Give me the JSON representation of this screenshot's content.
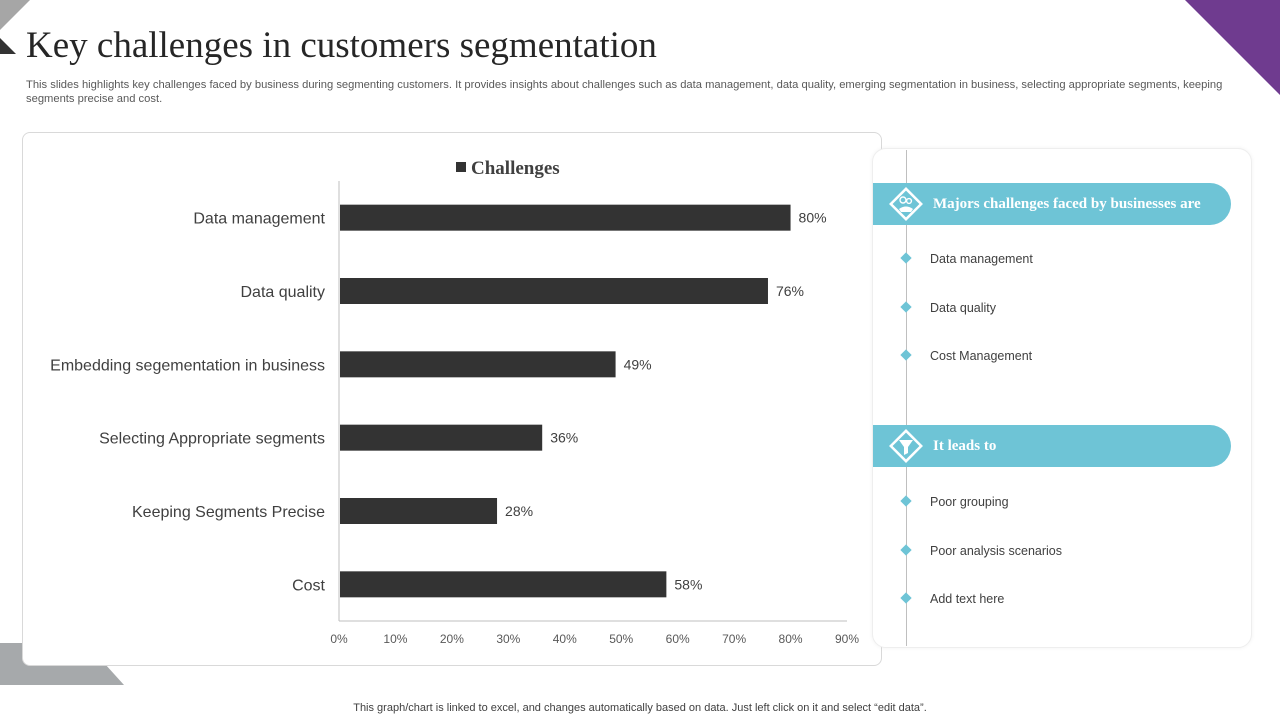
{
  "header": {
    "title": "Key challenges in customers segmentation",
    "subtitle": "This slides highlights key challenges faced by business during segmenting customers. It provides insights about challenges such as data management, data quality, emerging segmentation in business, selecting appropriate segments, keeping segments precise and cost."
  },
  "chart_data": {
    "type": "bar",
    "orientation": "horizontal",
    "title": "Challenges",
    "categories": [
      "Data management",
      "Data quality",
      "Embedding segementation in business",
      "Selecting Appropriate segments",
      "Keeping Segments Precise",
      "Cost"
    ],
    "series": [
      {
        "name": "Challenges",
        "values": [
          80,
          76,
          49,
          36,
          28,
          58
        ]
      }
    ],
    "data_labels": [
      "80%",
      "76%",
      "49%",
      "36%",
      "28%",
      "58%"
    ],
    "xlim": [
      0,
      90
    ],
    "x_ticks": [
      "0%",
      "10%",
      "20%",
      "30%",
      "40%",
      "50%",
      "60%",
      "70%",
      "80%",
      "90%"
    ],
    "legend": "top",
    "grid": false,
    "bar_color": "#333333"
  },
  "sidebar": {
    "section1": {
      "heading": "Majors challenges faced by businesses are",
      "icon": "hand-gears-icon",
      "items": [
        "Data management",
        "Data quality",
        "Cost Management"
      ]
    },
    "section2": {
      "heading": "It leads to",
      "icon": "funnel-icon",
      "items": [
        "Poor grouping",
        "Poor analysis scenarios",
        "Add text here"
      ]
    }
  },
  "footer": {
    "note": "This graph/chart is linked to excel,  and changes automatically based on data. Just left click on it and select “edit data”."
  },
  "colors": {
    "accent_purple": "#6f3b8f",
    "accent_teal": "#6ec4d6",
    "bar": "#333333"
  }
}
